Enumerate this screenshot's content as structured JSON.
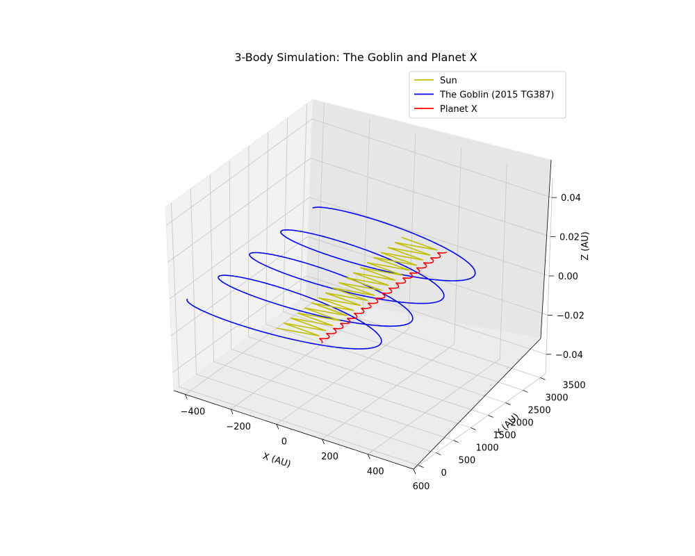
{
  "chart_data": {
    "type": "line",
    "projection": "3d",
    "title": "3-Body Simulation: The Goblin and Planet X",
    "xlabel": "X (AU)",
    "ylabel": "Y (AU)",
    "zlabel": "Z (AU)",
    "xlim": [
      -450,
      600
    ],
    "ylim": [
      -150,
      3650
    ],
    "zlim": [
      -0.05,
      0.05
    ],
    "x_ticks": [
      "−400",
      "−200",
      "0",
      "200",
      "400",
      "600"
    ],
    "y_ticks": [
      "0",
      "500",
      "1000",
      "1500",
      "2000",
      "2500",
      "3000",
      "3500"
    ],
    "z_ticks": [
      "−0.04",
      "−0.02",
      "0.00",
      "0.02",
      "0.04"
    ],
    "grid": true,
    "legend_position": "upper-right",
    "series": [
      {
        "name": "Sun",
        "color": "#bfbf00",
        "description": "zig-zag drift from about (0, 0) to (0, 3400), amplitude about 150 AU, about 18 cycles",
        "x": [
          -10,
          160,
          150
        ],
        "y": [
          0,
          3400,
          3400
        ]
      },
      {
        "name": "The Goblin (2015 TG387)",
        "color": "#0000ff",
        "description": "large spiral loops drifting along +Y, amplitude about 400 AU, 4 loops",
        "x": [
          -380,
          400
        ],
        "y": [
          0,
          3400
        ]
      },
      {
        "name": "Planet X",
        "color": "#ff0000",
        "description": "small loops drifting along +Y, amplitude about 20 AU",
        "x": [
          170,
          190
        ],
        "y": [
          0,
          3400
        ]
      }
    ]
  }
}
